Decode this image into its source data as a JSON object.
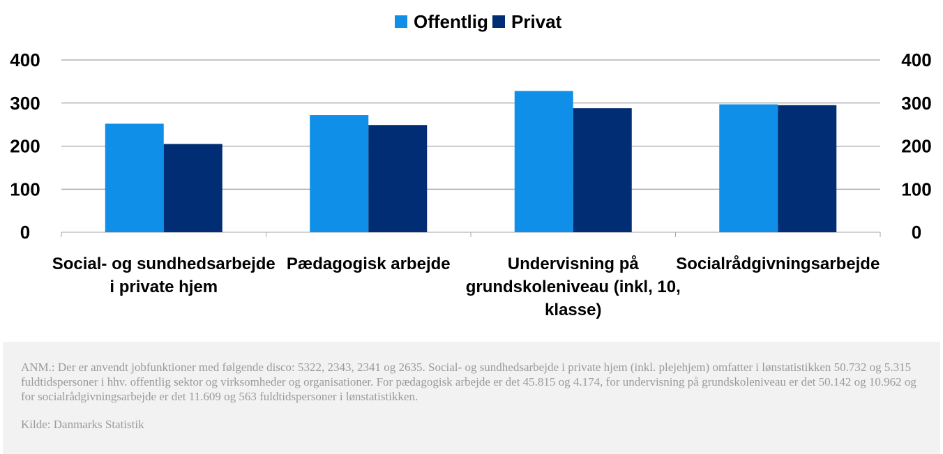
{
  "chart_data": {
    "type": "bar",
    "categories": [
      [
        "Social- og sundhedsarbejde",
        "i private hjem"
      ],
      [
        "Pædagogisk arbejde"
      ],
      [
        "Undervisning på",
        "grundskoleniveau (inkl, 10,",
        "klasse)"
      ],
      [
        "Socialrådgivningsarbejde"
      ]
    ],
    "series": [
      {
        "name": "Offentlig",
        "color": "#0f8fe8",
        "values": [
          252,
          272,
          328,
          297
        ]
      },
      {
        "name": "Privat",
        "color": "#002d73",
        "values": [
          205,
          249,
          288,
          295
        ]
      }
    ],
    "ylim": [
      0,
      400
    ],
    "yticks": [
      0,
      100,
      200,
      300,
      400
    ],
    "ytick_labels": [
      "0",
      "100",
      "200",
      "300",
      "400"
    ],
    "secondary_yticks": true,
    "grid": true,
    "legend_position": "top-center"
  },
  "note": {
    "text": "ANM.: Der er anvendt jobfunktioner med følgende disco: 5322, 2343, 2341 og 2635.  Social- og sundhedsarbejde i private hjem (inkl. plejehjem) omfatter i lønstatistikken 50.732 og 5.315 fuldtidspersoner i hhv. offentlig sektor og virksomheder og organisationer. For pædagogisk arbejde er det 45.815 og 4.174, for undervisning på grundskoleniveau er det 50.142 og 10.962 og for socialrådgivningsarbejde er det 11.609 og 563 fuldtidspersoner i lønstatistikken.",
    "source": "Kilde: Danmarks Statistik"
  }
}
